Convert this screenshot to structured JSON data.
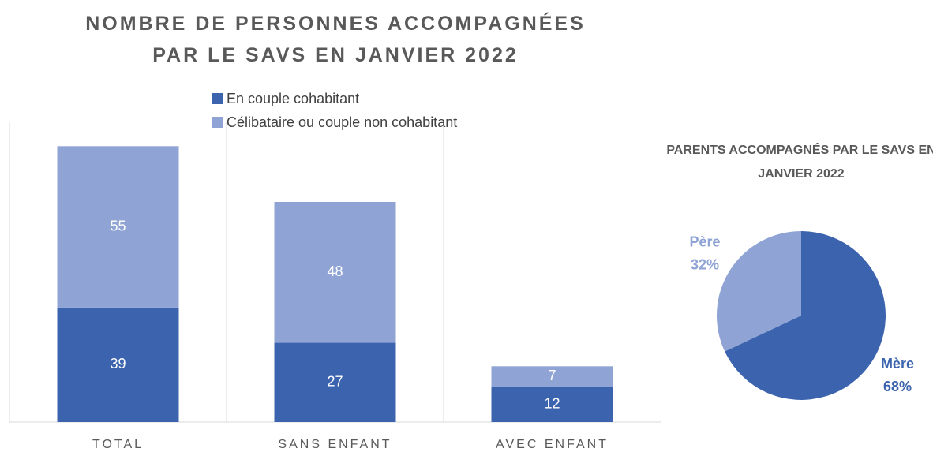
{
  "chart_data": [
    {
      "type": "stacked_bar",
      "title": "NOMBRE DE PERSONNES ACCOMPAGNÉES PAR LE SAVS EN JANVIER 2022",
      "categories": [
        "TOTAL",
        "SANS ENFANT",
        "AVEC ENFANT"
      ],
      "series": [
        {
          "name": "En couple cohabitant",
          "color": "#3c64ae",
          "values": [
            39,
            27,
            12
          ]
        },
        {
          "name": "Célibataire ou couple non cohabitant",
          "color": "#8fa3d4",
          "values": [
            55,
            48,
            7
          ]
        }
      ],
      "ylim": [
        0,
        100
      ]
    },
    {
      "type": "pie",
      "title": "PARENTS ACCOMPAGNÉS PAR LE SAVS EN JANVIER 2022",
      "categories": [
        "Mère",
        "Père"
      ],
      "values": [
        68,
        32
      ],
      "value_labels": [
        "68%",
        "32%"
      ],
      "colors": [
        "#3c64ae",
        "#8fa3d4"
      ]
    }
  ]
}
